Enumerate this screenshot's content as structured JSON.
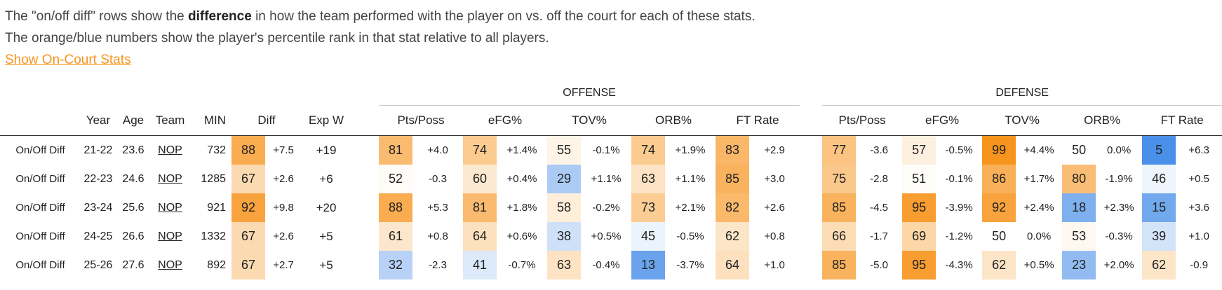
{
  "intro": {
    "line1": {
      "before": "The \"on/off diff\" rows show the ",
      "bold": "difference",
      "after": " in how the team performed with the player on vs. off the court for each of these stats."
    },
    "line2": "The orange/blue numbers show the player's percentile rank in that stat relative to all players.",
    "link": "Show On-Court Stats"
  },
  "table": {
    "groups": [
      "OFFENSE",
      "DEFENSE"
    ],
    "columns": [
      "Year",
      "Age",
      "Team",
      "MIN",
      "Diff",
      "Exp W"
    ],
    "offense_columns": [
      "Pts/Poss",
      "eFG%",
      "TOV%",
      "ORB%",
      "FT Rate"
    ],
    "defense_columns": [
      "Pts/Poss",
      "eFG%",
      "TOV%",
      "ORB%",
      "FT Rate"
    ],
    "rows": [
      {
        "label": "On/Off Diff",
        "year": "21-22",
        "age": 23.6,
        "team": "NOP",
        "min": 732,
        "diff": {
          "pct": 88,
          "value": "+7.5"
        },
        "exp_w": "+19",
        "offense": [
          {
            "pct": 81,
            "value": "+4.0"
          },
          {
            "pct": 74,
            "value": "+1.4%"
          },
          {
            "pct": 55,
            "value": "-0.1%"
          },
          {
            "pct": 74,
            "value": "+1.9%"
          },
          {
            "pct": 83,
            "value": "+2.9"
          }
        ],
        "defense": [
          {
            "pct": 77,
            "value": "-3.6"
          },
          {
            "pct": 57,
            "value": "-0.5%"
          },
          {
            "pct": 99,
            "value": "+4.4%"
          },
          {
            "pct": 50,
            "value": "0.0%"
          },
          {
            "pct": 5,
            "value": "+6.3"
          }
        ]
      },
      {
        "label": "On/Off Diff",
        "year": "22-23",
        "age": 24.6,
        "team": "NOP",
        "min": 1285,
        "diff": {
          "pct": 67,
          "value": "+2.6"
        },
        "exp_w": "+6",
        "offense": [
          {
            "pct": 52,
            "value": "-0.3"
          },
          {
            "pct": 60,
            "value": "+0.4%"
          },
          {
            "pct": 29,
            "value": "+1.1%"
          },
          {
            "pct": 63,
            "value": "+1.1%"
          },
          {
            "pct": 85,
            "value": "+3.0"
          }
        ],
        "defense": [
          {
            "pct": 75,
            "value": "-2.8"
          },
          {
            "pct": 51,
            "value": "-0.1%"
          },
          {
            "pct": 86,
            "value": "+1.7%"
          },
          {
            "pct": 80,
            "value": "-1.9%"
          },
          {
            "pct": 46,
            "value": "+0.5"
          }
        ]
      },
      {
        "label": "On/Off Diff",
        "year": "23-24",
        "age": 25.6,
        "team": "NOP",
        "min": 921,
        "diff": {
          "pct": 92,
          "value": "+9.8"
        },
        "exp_w": "+20",
        "offense": [
          {
            "pct": 88,
            "value": "+5.3"
          },
          {
            "pct": 81,
            "value": "+1.8%"
          },
          {
            "pct": 58,
            "value": "-0.2%"
          },
          {
            "pct": 73,
            "value": "+2.1%"
          },
          {
            "pct": 82,
            "value": "+2.6"
          }
        ],
        "defense": [
          {
            "pct": 85,
            "value": "-4.5"
          },
          {
            "pct": 95,
            "value": "-3.9%"
          },
          {
            "pct": 92,
            "value": "+2.4%"
          },
          {
            "pct": 18,
            "value": "+2.3%"
          },
          {
            "pct": 15,
            "value": "+3.6"
          }
        ]
      },
      {
        "label": "On/Off Diff",
        "year": "24-25",
        "age": 26.6,
        "team": "NOP",
        "min": 1332,
        "diff": {
          "pct": 67,
          "value": "+2.6"
        },
        "exp_w": "+5",
        "offense": [
          {
            "pct": 61,
            "value": "+0.8"
          },
          {
            "pct": 64,
            "value": "+0.6%"
          },
          {
            "pct": 38,
            "value": "+0.5%"
          },
          {
            "pct": 45,
            "value": "-0.5%"
          },
          {
            "pct": 62,
            "value": "+0.8"
          }
        ],
        "defense": [
          {
            "pct": 66,
            "value": "-1.7"
          },
          {
            "pct": 69,
            "value": "-1.2%"
          },
          {
            "pct": 50,
            "value": "0.0%"
          },
          {
            "pct": 53,
            "value": "-0.3%"
          },
          {
            "pct": 39,
            "value": "+1.0"
          }
        ]
      },
      {
        "label": "On/Off Diff",
        "year": "25-26",
        "age": 27.6,
        "team": "NOP",
        "min": 892,
        "diff": {
          "pct": 67,
          "value": "+2.7"
        },
        "exp_w": "+5",
        "offense": [
          {
            "pct": 32,
            "value": "-2.3"
          },
          {
            "pct": 41,
            "value": "-0.7%"
          },
          {
            "pct": 63,
            "value": "-0.4%"
          },
          {
            "pct": 13,
            "value": "-3.7%"
          },
          {
            "pct": 64,
            "value": "+1.0"
          }
        ],
        "defense": [
          {
            "pct": 85,
            "value": "-5.0"
          },
          {
            "pct": 95,
            "value": "-4.3%"
          },
          {
            "pct": 62,
            "value": "+0.5%"
          },
          {
            "pct": 23,
            "value": "+2.0%"
          },
          {
            "pct": 62,
            "value": "-0.9"
          }
        ]
      }
    ]
  }
}
